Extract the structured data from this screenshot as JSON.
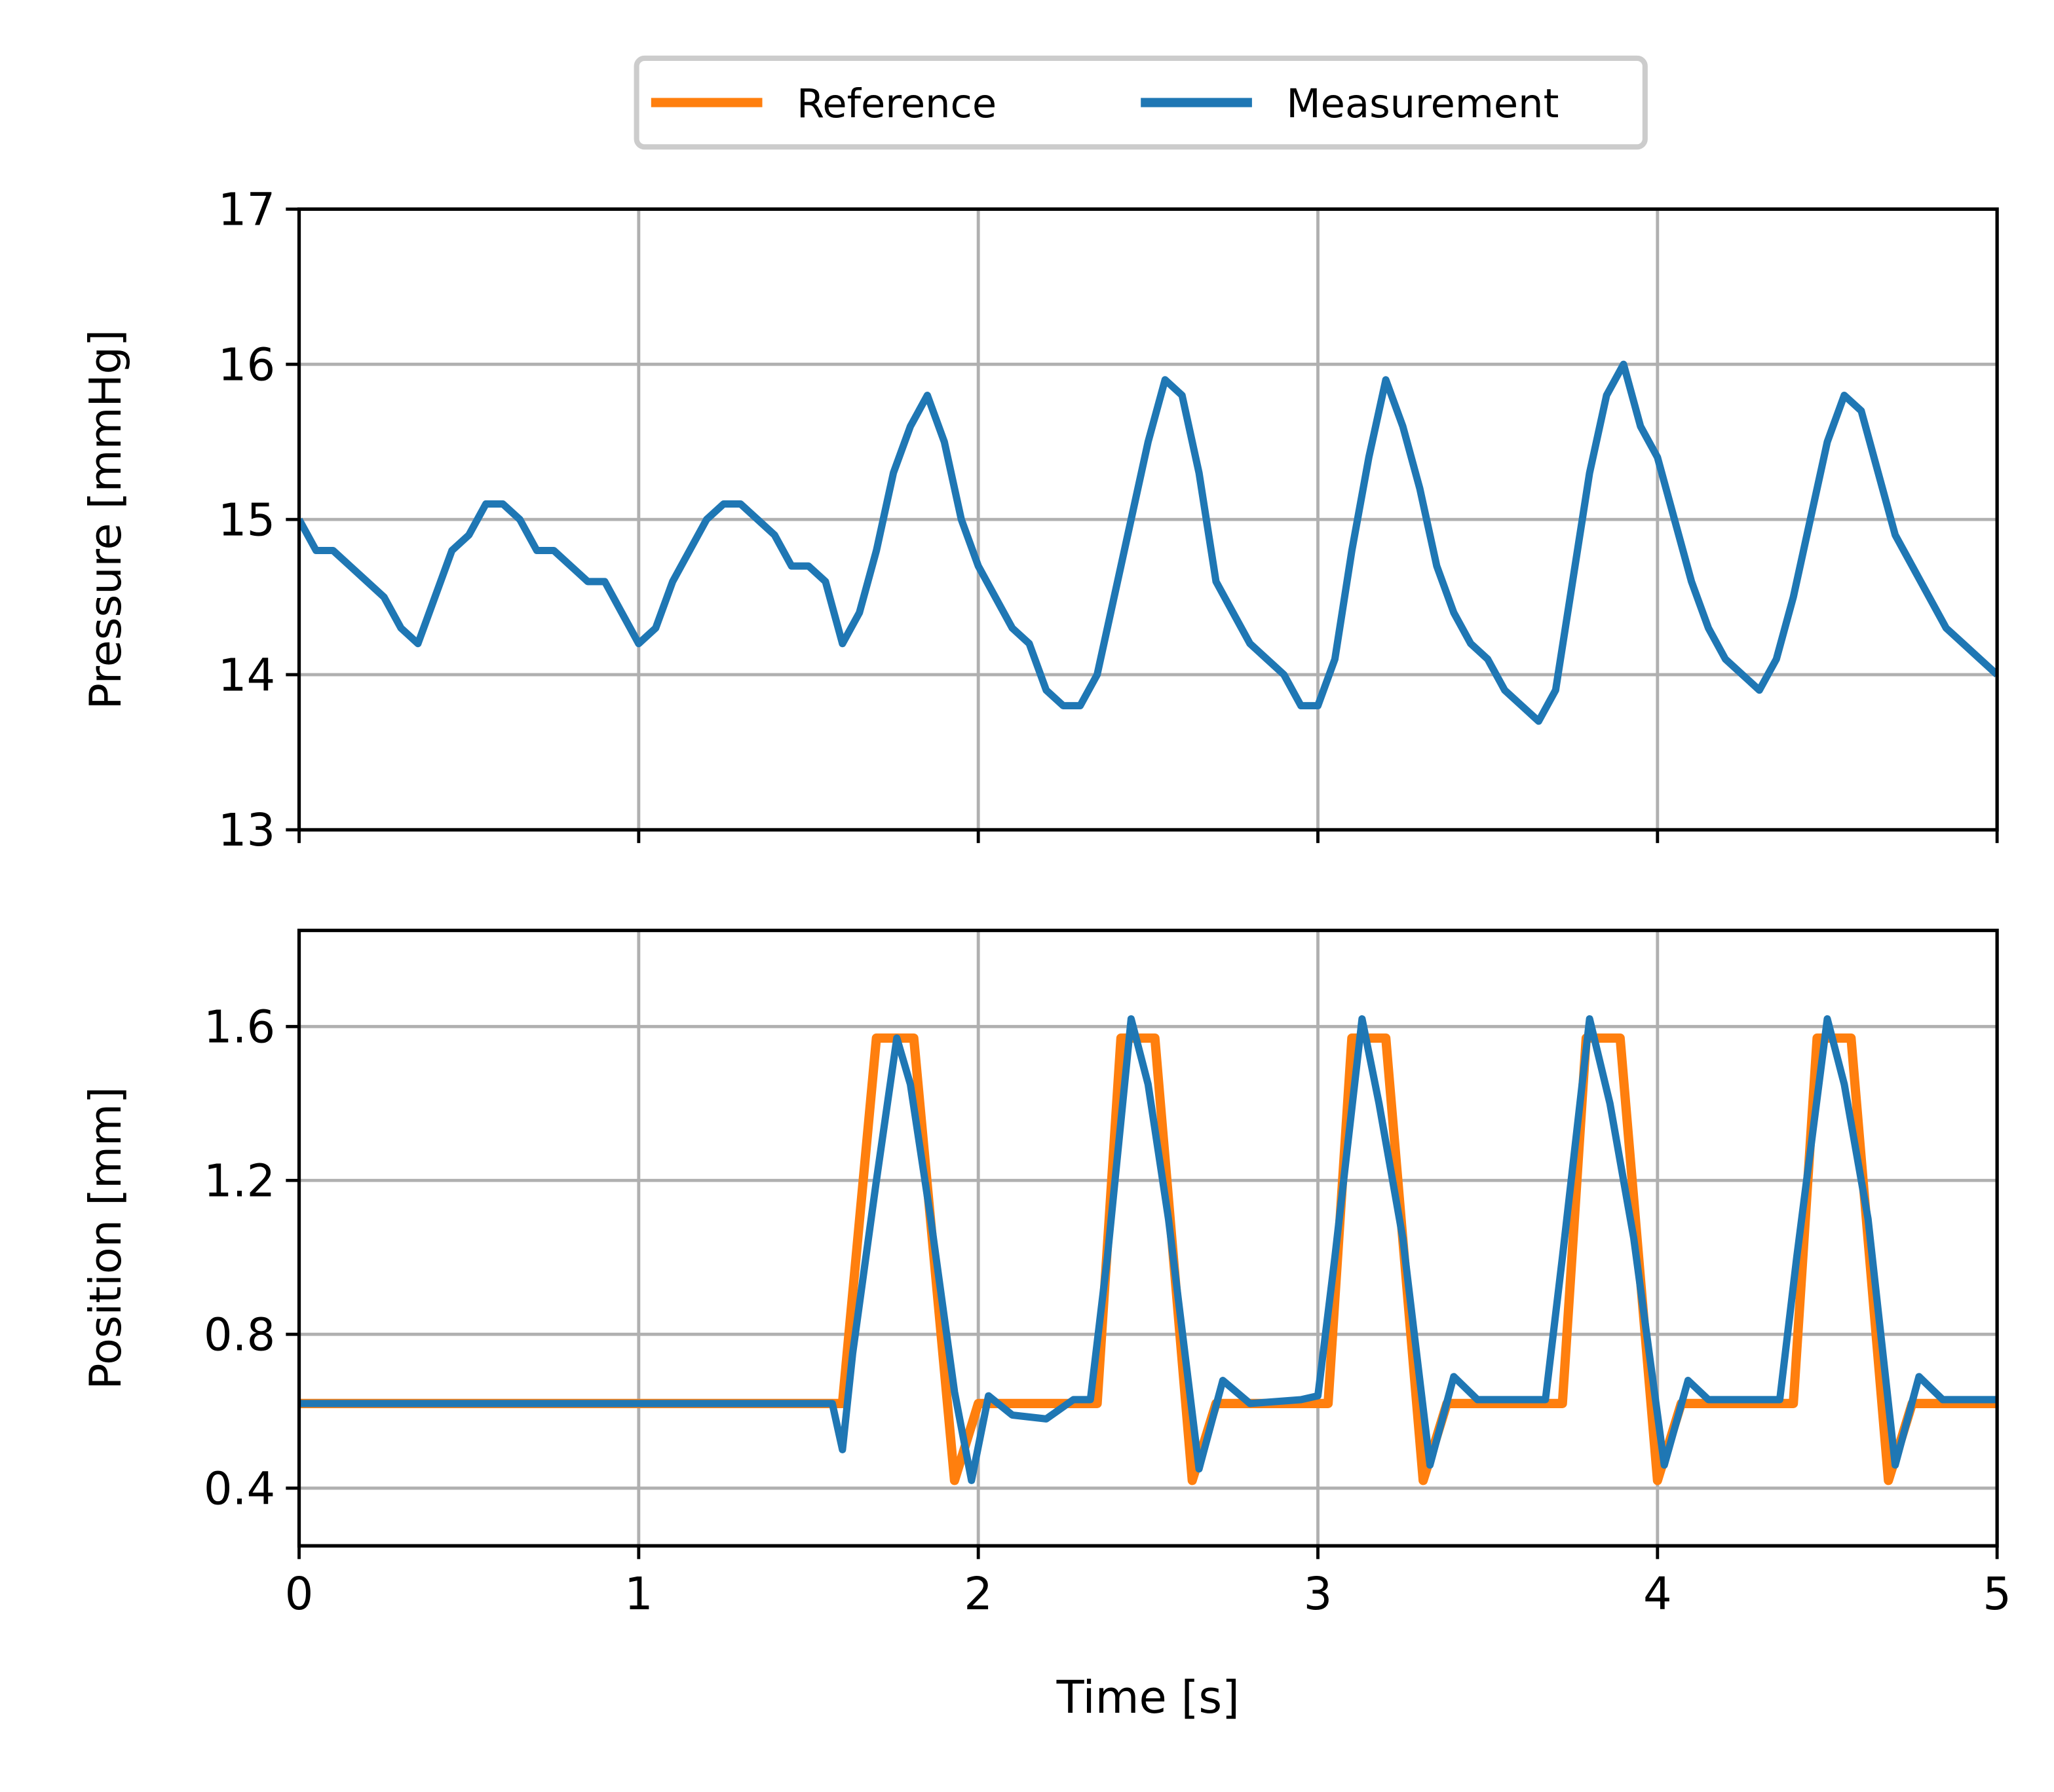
{
  "chart_data": [
    {
      "type": "line",
      "ylabel": "Pressure [mmHg]",
      "xlim": [
        0,
        5
      ],
      "xticks": [
        0,
        1,
        2,
        3,
        4,
        5
      ],
      "ylim": [
        13,
        17
      ],
      "yticks": [
        13,
        14,
        15,
        16,
        17
      ],
      "grid": true,
      "x": [
        0,
        0.05,
        0.1,
        0.15,
        0.2,
        0.25,
        0.3,
        0.35,
        0.4,
        0.45,
        0.5,
        0.55,
        0.6,
        0.65,
        0.7,
        0.75,
        0.8,
        0.85,
        0.9,
        0.95,
        1.0,
        1.05,
        1.1,
        1.15,
        1.2,
        1.25,
        1.3,
        1.35,
        1.4,
        1.45,
        1.5,
        1.55,
        1.6,
        1.65,
        1.7,
        1.75,
        1.8,
        1.85,
        1.9,
        1.95,
        2.0,
        2.05,
        2.1,
        2.15,
        2.2,
        2.25,
        2.3,
        2.35,
        2.4,
        2.45,
        2.5,
        2.55,
        2.6,
        2.65,
        2.7,
        2.75,
        2.8,
        2.85,
        2.9,
        2.95,
        3.0,
        3.05,
        3.1,
        3.15,
        3.2,
        3.25,
        3.3,
        3.35,
        3.4,
        3.45,
        3.5,
        3.55,
        3.6,
        3.65,
        3.7,
        3.75,
        3.8,
        3.85,
        3.9,
        3.95,
        4.0,
        4.05,
        4.1,
        4.15,
        4.2,
        4.25,
        4.3,
        4.35,
        4.4,
        4.45,
        4.5,
        4.55,
        4.6,
        4.65,
        4.7,
        4.75,
        4.8,
        4.85,
        4.9,
        4.95,
        5.0
      ],
      "series": [
        {
          "color": "#1f77b4",
          "values": [
            15.0,
            14.8,
            14.8,
            14.7,
            14.6,
            14.5,
            14.3,
            14.2,
            14.5,
            14.8,
            14.9,
            15.1,
            15.1,
            15.0,
            14.8,
            14.8,
            14.7,
            14.6,
            14.6,
            14.4,
            14.2,
            14.3,
            14.6,
            14.8,
            15.0,
            15.1,
            15.1,
            15.0,
            14.9,
            14.7,
            14.7,
            14.6,
            14.2,
            14.4,
            14.8,
            15.3,
            15.6,
            15.8,
            15.5,
            15.0,
            14.7,
            14.5,
            14.3,
            14.2,
            13.9,
            13.8,
            13.8,
            14.0,
            14.5,
            15.0,
            15.5,
            15.9,
            15.8,
            15.3,
            14.6,
            14.4,
            14.2,
            14.1,
            14.0,
            13.8,
            13.8,
            14.1,
            14.8,
            15.4,
            15.9,
            15.6,
            15.2,
            14.7,
            14.4,
            14.2,
            14.1,
            13.9,
            13.8,
            13.7,
            13.9,
            14.6,
            15.3,
            15.8,
            16.0,
            15.6,
            15.4,
            15.0,
            14.6,
            14.3,
            14.1,
            14.0,
            13.9,
            14.1,
            14.5,
            15.0,
            15.5,
            15.8,
            15.7,
            15.3,
            14.9,
            14.7,
            14.5,
            14.3,
            14.2,
            14.1,
            14.0
          ]
        }
      ]
    },
    {
      "type": "line",
      "xlabel": "Time [s]",
      "ylabel": "Position [mm]",
      "xlim": [
        0,
        5
      ],
      "xticks": [
        0,
        1,
        2,
        3,
        4,
        5
      ],
      "ylim": [
        0.25,
        1.85
      ],
      "yticks": [
        0.4,
        0.8,
        1.2,
        1.6
      ],
      "grid": true,
      "legend": "top",
      "series": [
        {
          "name": "Reference",
          "color": "#ff7f0e",
          "x": [
            0,
            1.6,
            1.7,
            1.81,
            1.93,
            2.0,
            2.35,
            2.42,
            2.52,
            2.63,
            2.7,
            3.03,
            3.1,
            3.2,
            3.31,
            3.38,
            3.72,
            3.79,
            3.89,
            4.0,
            4.07,
            4.4,
            4.47,
            4.57,
            4.68,
            4.75,
            5
          ],
          "values": [
            0.62,
            0.62,
            1.57,
            1.57,
            0.42,
            0.62,
            0.62,
            1.57,
            1.57,
            0.42,
            0.62,
            0.62,
            1.57,
            1.57,
            0.42,
            0.62,
            0.62,
            1.57,
            1.57,
            0.42,
            0.62,
            0.62,
            1.57,
            1.57,
            0.42,
            0.62,
            0.62
          ]
        },
        {
          "name": "Measurement",
          "color": "#1f77b4",
          "x": [
            0,
            1.57,
            1.6,
            1.63,
            1.7,
            1.76,
            1.8,
            1.86,
            1.93,
            1.98,
            2.03,
            2.1,
            2.2,
            2.28,
            2.33,
            2.38,
            2.45,
            2.5,
            2.56,
            2.65,
            2.72,
            2.8,
            2.95,
            3.0,
            3.05,
            3.13,
            3.18,
            3.25,
            3.33,
            3.4,
            3.47,
            3.6,
            3.67,
            3.72,
            3.8,
            3.86,
            3.93,
            4.02,
            4.09,
            4.15,
            4.3,
            4.36,
            4.41,
            4.5,
            4.55,
            4.62,
            4.7,
            4.77,
            4.84,
            5
          ],
          "values": [
            0.62,
            0.62,
            0.5,
            0.75,
            1.2,
            1.57,
            1.45,
            1.1,
            0.65,
            0.42,
            0.64,
            0.59,
            0.58,
            0.63,
            0.63,
            1.0,
            1.62,
            1.45,
            1.1,
            0.45,
            0.68,
            0.62,
            0.63,
            0.64,
            1.0,
            1.62,
            1.4,
            1.05,
            0.46,
            0.69,
            0.63,
            0.63,
            0.63,
            1.0,
            1.62,
            1.4,
            1.05,
            0.46,
            0.68,
            0.63,
            0.63,
            0.63,
            1.0,
            1.62,
            1.45,
            1.1,
            0.46,
            0.69,
            0.63,
            0.63
          ]
        }
      ]
    }
  ]
}
